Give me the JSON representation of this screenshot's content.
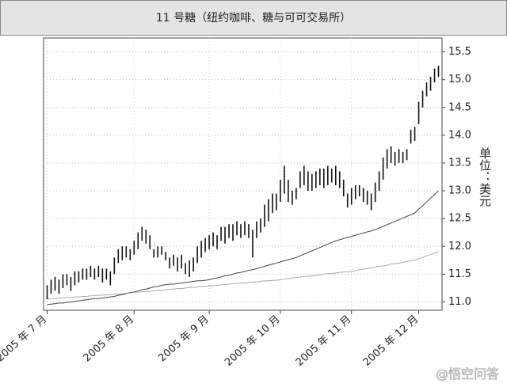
{
  "chart_data": {
    "type": "ohlc",
    "title": "11 号糖（纽约咖啡、糖与可可交易所）",
    "y_label": "单位：美元",
    "watermark": "@悟空问答",
    "categories": [
      "2005 年 7 月",
      null,
      null,
      null,
      null,
      null,
      null,
      null,
      null,
      null,
      null,
      null,
      null,
      null,
      null,
      null,
      null,
      null,
      null,
      null,
      null,
      null,
      "2005 年 8 月",
      null,
      null,
      null,
      null,
      null,
      null,
      null,
      null,
      null,
      null,
      null,
      null,
      null,
      null,
      null,
      null,
      null,
      null,
      "2005 年 9 月",
      null,
      null,
      null,
      null,
      null,
      null,
      null,
      null,
      null,
      null,
      null,
      null,
      null,
      null,
      null,
      null,
      null,
      "2005 年 10 月",
      null,
      null,
      null,
      null,
      null,
      null,
      null,
      null,
      null,
      null,
      null,
      null,
      null,
      null,
      null,
      null,
      null,
      "2005 年 11 月",
      null,
      null,
      null,
      null,
      null,
      null,
      null,
      null,
      null,
      null,
      null,
      null,
      null,
      null,
      null,
      null,
      "2005 年 12 月",
      null,
      null,
      null,
      null,
      null
    ],
    "high": [
      11.3,
      11.4,
      11.45,
      11.4,
      11.5,
      11.5,
      11.45,
      11.55,
      11.55,
      11.6,
      11.6,
      11.65,
      11.6,
      11.65,
      11.6,
      11.6,
      11.55,
      11.8,
      11.95,
      12.0,
      12.0,
      11.95,
      12.1,
      12.25,
      12.35,
      12.3,
      12.2,
      11.95,
      12.0,
      12.0,
      11.9,
      11.8,
      11.85,
      11.8,
      11.85,
      11.7,
      11.75,
      11.8,
      12.0,
      12.1,
      12.15,
      12.2,
      12.25,
      12.2,
      12.35,
      12.35,
      12.4,
      12.4,
      12.45,
      12.4,
      12.45,
      12.4,
      12.3,
      12.45,
      12.5,
      12.75,
      12.85,
      12.95,
      12.95,
      13.2,
      13.45,
      13.2,
      13.0,
      13.05,
      13.35,
      13.45,
      13.35,
      13.3,
      13.35,
      13.4,
      13.4,
      13.45,
      13.4,
      13.45,
      13.35,
      13.2,
      12.95,
      13.05,
      13.1,
      13.1,
      13.05,
      13.0,
      12.95,
      13.15,
      13.35,
      13.6,
      13.75,
      13.8,
      13.7,
      13.75,
      13.7,
      13.75,
      14.1,
      14.15,
      14.6,
      14.8,
      14.95,
      15.05,
      15.2,
      15.25
    ],
    "low": [
      11.05,
      11.15,
      11.2,
      11.15,
      11.25,
      11.3,
      11.2,
      11.3,
      11.35,
      11.4,
      11.4,
      11.45,
      11.4,
      11.45,
      11.35,
      11.4,
      11.3,
      11.5,
      11.7,
      11.75,
      11.8,
      11.75,
      11.85,
      11.95,
      12.1,
      12.05,
      11.95,
      11.8,
      11.8,
      11.85,
      11.75,
      11.6,
      11.65,
      11.55,
      11.6,
      11.5,
      11.45,
      11.55,
      11.7,
      11.8,
      11.9,
      11.95,
      12.0,
      11.95,
      12.1,
      12.05,
      12.15,
      12.1,
      12.2,
      12.15,
      12.2,
      12.15,
      11.8,
      12.15,
      12.25,
      12.35,
      12.45,
      12.6,
      12.65,
      12.8,
      12.95,
      12.8,
      12.75,
      12.85,
      13.05,
      13.1,
      13.0,
      13.0,
      13.05,
      13.1,
      13.05,
      13.1,
      13.15,
      13.1,
      13.05,
      12.9,
      12.7,
      12.75,
      12.85,
      12.9,
      12.8,
      12.75,
      12.65,
      12.8,
      13.0,
      13.2,
      13.4,
      13.5,
      13.45,
      13.5,
      13.5,
      13.55,
      13.85,
      13.9,
      14.2,
      14.5,
      14.7,
      14.8,
      14.95,
      15.05
    ],
    "color": "#111111",
    "lines": [
      {
        "color": "#444444",
        "values": [
          10.95,
          10.96,
          10.97,
          10.98,
          10.98,
          10.99,
          11.0,
          11.01,
          11.02,
          11.03,
          11.04,
          11.05,
          11.06,
          11.06,
          11.07,
          11.08,
          11.09,
          11.1,
          11.12,
          11.13,
          11.15,
          11.17,
          11.18,
          11.2,
          11.22,
          11.23,
          11.25,
          11.27,
          11.28,
          11.3,
          11.31,
          11.32,
          11.32,
          11.33,
          11.34,
          11.35,
          11.36,
          11.37,
          11.38,
          11.38,
          11.39,
          11.4,
          11.42,
          11.43,
          11.45,
          11.47,
          11.48,
          11.5,
          11.52,
          11.53,
          11.55,
          11.57,
          11.58,
          11.6,
          11.62,
          11.64,
          11.66,
          11.68,
          11.7,
          11.72,
          11.74,
          11.76,
          11.78,
          11.8,
          11.83,
          11.86,
          11.89,
          11.92,
          11.95,
          11.98,
          12.01,
          12.04,
          12.07,
          12.1,
          12.12,
          12.14,
          12.16,
          12.18,
          12.2,
          12.22,
          12.24,
          12.26,
          12.28,
          12.3,
          12.33,
          12.36,
          12.39,
          12.42,
          12.45,
          12.48,
          12.51,
          12.54,
          12.57,
          12.6,
          12.67,
          12.73,
          12.8,
          12.87,
          12.93,
          13.0
        ]
      },
      {
        "color": "#aaaaaa",
        "values": [
          11.05,
          11.06,
          11.06,
          11.07,
          11.07,
          11.08,
          11.08,
          11.09,
          11.09,
          11.1,
          11.1,
          11.11,
          11.11,
          11.12,
          11.12,
          11.13,
          11.13,
          11.14,
          11.14,
          11.15,
          11.16,
          11.16,
          11.17,
          11.18,
          11.18,
          11.19,
          11.19,
          11.2,
          11.21,
          11.21,
          11.22,
          11.23,
          11.23,
          11.24,
          11.24,
          11.25,
          11.26,
          11.26,
          11.27,
          11.28,
          11.28,
          11.29,
          11.29,
          11.3,
          11.31,
          11.31,
          11.32,
          11.33,
          11.33,
          11.34,
          11.34,
          11.35,
          11.36,
          11.36,
          11.37,
          11.38,
          11.38,
          11.39,
          11.39,
          11.4,
          11.41,
          11.42,
          11.43,
          11.44,
          11.45,
          11.46,
          11.46,
          11.47,
          11.48,
          11.49,
          11.5,
          11.51,
          11.51,
          11.52,
          11.53,
          11.54,
          11.54,
          11.55,
          11.56,
          11.58,
          11.59,
          11.6,
          11.61,
          11.63,
          11.64,
          11.65,
          11.66,
          11.68,
          11.69,
          11.7,
          11.71,
          11.73,
          11.74,
          11.75,
          11.78,
          11.8,
          11.83,
          11.85,
          11.88,
          11.9
        ]
      }
    ],
    "ylim": [
      10.85,
      15.75
    ],
    "yticks": [
      {
        "value": 11,
        "label": "11.0"
      },
      11.5,
      {
        "value": 12,
        "label": "12.0"
      },
      12.5,
      {
        "value": 13,
        "label": "13.0"
      },
      13.5,
      {
        "value": 14,
        "label": "14.0"
      },
      14.5,
      {
        "value": 15,
        "label": "15.0"
      },
      15.5
    ],
    "grid": true
  }
}
